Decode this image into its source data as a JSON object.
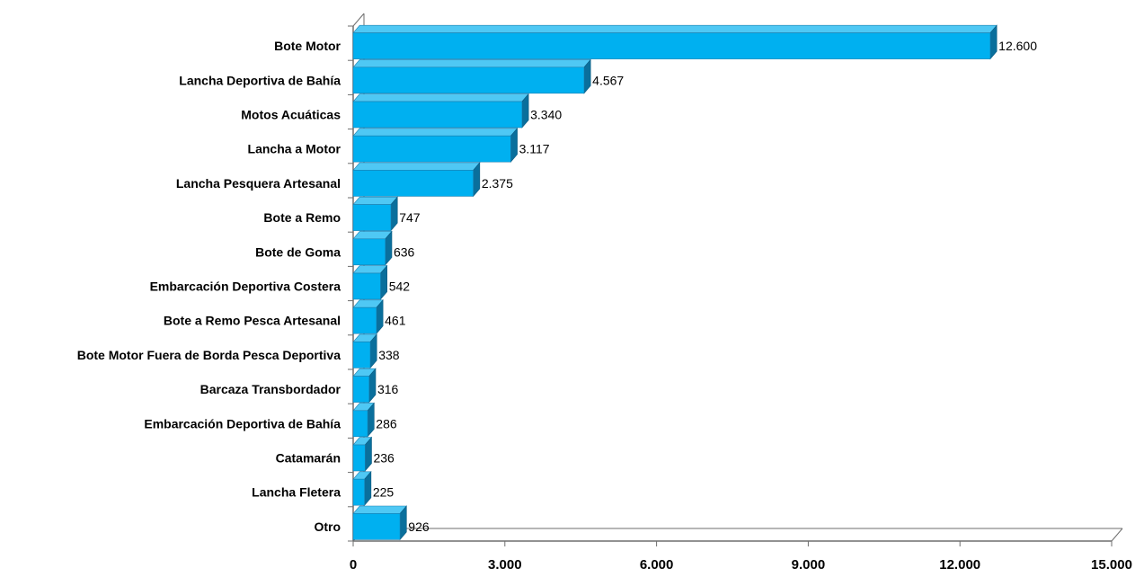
{
  "chart_data": {
    "type": "bar",
    "orientation": "horizontal",
    "style": "3d",
    "categories": [
      "Bote Motor",
      "Lancha Deportiva de Bahía",
      "Motos Acuáticas",
      "Lancha a Motor",
      "Lancha Pesquera Artesanal",
      "Bote a Remo",
      "Bote de Goma",
      "Embarcación Deportiva Costera",
      "Bote a Remo Pesca Artesanal",
      "Bote Motor Fuera de Borda Pesca Deportiva",
      "Barcaza Transbordador",
      "Embarcación Deportiva de Bahía",
      "Catamarán",
      "Lancha Fletera",
      "Otro"
    ],
    "values": [
      12600,
      4567,
      3340,
      3117,
      2375,
      747,
      636,
      542,
      461,
      338,
      316,
      286,
      236,
      225,
      926
    ],
    "value_labels": [
      "12.600",
      "4.567",
      "3.340",
      "3.117",
      "2.375",
      "747",
      "636",
      "542",
      "461",
      "338",
      "316",
      "286",
      "236",
      "225",
      "926"
    ],
    "xlim": [
      0,
      15000
    ],
    "xticks": [
      0,
      3000,
      6000,
      9000,
      12000,
      15000
    ],
    "xtick_labels": [
      "0",
      "3.000",
      "6.000",
      "9.000",
      "12.000",
      "15.000"
    ],
    "title": "",
    "xlabel": "",
    "ylabel": "",
    "grid": false,
    "legend": "none",
    "colors": {
      "bar_front": "#00b0f0",
      "bar_top": "#4fc8f4",
      "bar_side": "#0a6f9c",
      "axis": "#6e6e6e"
    }
  }
}
